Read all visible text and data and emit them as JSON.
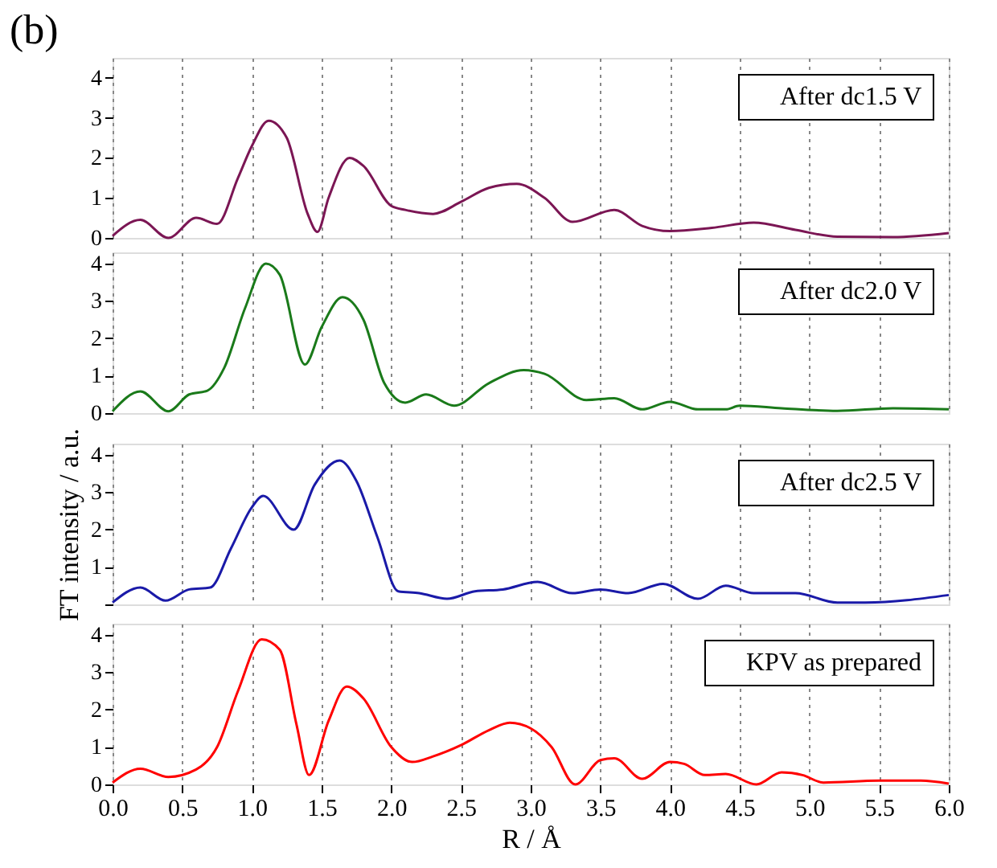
{
  "chart_data": [
    {
      "type": "line",
      "title": "(b)",
      "xlim": [
        0,
        6
      ],
      "xticks": [
        0,
        0.5,
        1,
        1.5,
        2,
        2.5,
        3,
        3.5,
        4,
        4.5,
        5,
        5.5,
        6
      ],
      "ylim": [
        0,
        4.5
      ],
      "yticks": [
        0,
        1,
        2,
        3,
        4
      ],
      "grid": "x",
      "legend": "top right",
      "tick_labels": "y",
      "series": [
        {
          "name": "After dc1.5 V",
          "color": "#7b1654",
          "x": [
            0,
            0.2,
            0.4,
            0.6,
            0.75,
            0.9,
            1.0,
            1.12,
            1.25,
            1.4,
            1.47,
            1.55,
            1.7,
            1.8,
            2.0,
            2.1,
            2.3,
            2.5,
            2.7,
            2.9,
            3.1,
            3.3,
            3.6,
            3.8,
            4.0,
            4.3,
            4.6,
            4.9,
            5.2,
            5.6,
            6.0
          ],
          "values": [
            0.05,
            0.45,
            0,
            0.5,
            0.35,
            1.5,
            2.3,
            2.93,
            2.5,
            0.6,
            0.15,
            1,
            2.0,
            1.8,
            0.8,
            0.7,
            0.6,
            0.9,
            1.25,
            1.35,
            1.0,
            0.4,
            0.7,
            0.3,
            0.17,
            0.25,
            0.38,
            0.2,
            0.03,
            0.02,
            0.12
          ]
        }
      ]
    },
    {
      "type": "line",
      "xlim": [
        0,
        6
      ],
      "xticks": [
        0,
        0.5,
        1,
        1.5,
        2,
        2.5,
        3,
        3.5,
        4,
        4.5,
        5,
        5.5,
        6
      ],
      "ylim": [
        0,
        4.3
      ],
      "yticks": [
        0,
        1,
        2,
        3,
        4
      ],
      "grid": "x",
      "legend": "top right",
      "tick_labels": "y",
      "series": [
        {
          "name": "After dc2.0 V",
          "color": "#1a7a1a",
          "x": [
            0,
            0.2,
            0.4,
            0.55,
            0.68,
            0.8,
            0.95,
            1.1,
            1.2,
            1.38,
            1.5,
            1.65,
            1.8,
            1.95,
            2.1,
            2.25,
            2.45,
            2.7,
            2.95,
            3.1,
            3.4,
            3.6,
            3.8,
            4.0,
            4.2,
            4.4,
            4.5,
            4.8,
            5.2,
            5.6,
            6.0
          ],
          "values": [
            0.05,
            0.58,
            0.05,
            0.5,
            0.6,
            1.2,
            2.8,
            4.0,
            3.7,
            1.3,
            2.3,
            3.1,
            2.5,
            0.8,
            0.28,
            0.5,
            0.2,
            0.8,
            1.15,
            1.05,
            0.35,
            0.4,
            0.1,
            0.3,
            0.1,
            0.1,
            0.2,
            0.13,
            0.06,
            0.13,
            0.1
          ]
        }
      ]
    },
    {
      "type": "line",
      "ylabel": "FT intensity / a.u.",
      "xlim": [
        0,
        6
      ],
      "xticks": [
        0,
        0.5,
        1,
        1.5,
        2,
        2.5,
        3,
        3.5,
        4,
        4.5,
        5,
        5.5,
        6
      ],
      "ylim": [
        0,
        4.3
      ],
      "yticks": [
        {
          "value": 0,
          "label": null
        },
        1,
        2,
        3,
        4
      ],
      "grid": "x",
      "legend": "top right",
      "tick_labels": "y",
      "series": [
        {
          "name": "After dc2.5 V",
          "color": "#1a1aa8",
          "x": [
            0,
            0.2,
            0.38,
            0.55,
            0.7,
            0.85,
            1.0,
            1.08,
            1.3,
            1.45,
            1.63,
            1.75,
            1.9,
            2.05,
            2.2,
            2.4,
            2.6,
            2.8,
            3.05,
            3.3,
            3.5,
            3.7,
            3.95,
            4.2,
            4.4,
            4.6,
            4.9,
            5.2,
            5.4,
            6.0
          ],
          "values": [
            0.05,
            0.45,
            0.1,
            0.4,
            0.45,
            1.5,
            2.6,
            2.9,
            2.0,
            3.2,
            3.85,
            3.3,
            1.8,
            0.35,
            0.3,
            0.15,
            0.35,
            0.4,
            0.6,
            0.3,
            0.4,
            0.3,
            0.55,
            0.15,
            0.5,
            0.3,
            0.3,
            0.05,
            0.05,
            0.25
          ]
        }
      ]
    },
    {
      "type": "line",
      "xlabel": "R / Å",
      "xlim": [
        0,
        6
      ],
      "xticks": [
        {
          "value": 0,
          "label": "0.0"
        },
        0.5,
        {
          "value": 1,
          "label": "1.0"
        },
        1.5,
        {
          "value": 2,
          "label": "2.0"
        },
        2.5,
        {
          "value": 3,
          "label": "3.0"
        },
        3.5,
        {
          "value": 4,
          "label": "4.0"
        },
        4.5,
        {
          "value": 5,
          "label": "5.0"
        },
        5.5,
        {
          "value": 6,
          "label": "6.0"
        }
      ],
      "ylim": [
        0,
        4.3
      ],
      "yticks": [
        0,
        1,
        2,
        3,
        4
      ],
      "grid": "x",
      "legend": "top right",
      "series": [
        {
          "name": "KPV as prepared",
          "color": "#ff0000",
          "x": [
            0,
            0.2,
            0.4,
            0.6,
            0.75,
            0.9,
            1.07,
            1.2,
            1.32,
            1.41,
            1.55,
            1.68,
            1.8,
            2.0,
            2.15,
            2.3,
            2.5,
            2.7,
            2.85,
            3.0,
            3.15,
            3.32,
            3.5,
            3.6,
            3.8,
            4.0,
            4.1,
            4.25,
            4.4,
            4.62,
            4.8,
            4.95,
            5.1,
            5.5,
            5.8,
            6.0
          ],
          "values": [
            0.05,
            0.42,
            0.2,
            0.4,
            1.0,
            2.5,
            3.88,
            3.6,
            1.6,
            0.25,
            1.7,
            2.62,
            2.3,
            1.0,
            0.6,
            0.75,
            1.05,
            1.45,
            1.65,
            1.5,
            1.0,
            0,
            0.65,
            0.7,
            0.15,
            0.6,
            0.55,
            0.25,
            0.28,
            0,
            0.32,
            0.25,
            0.05,
            0.1,
            0.1,
            0.02
          ]
        }
      ]
    }
  ]
}
